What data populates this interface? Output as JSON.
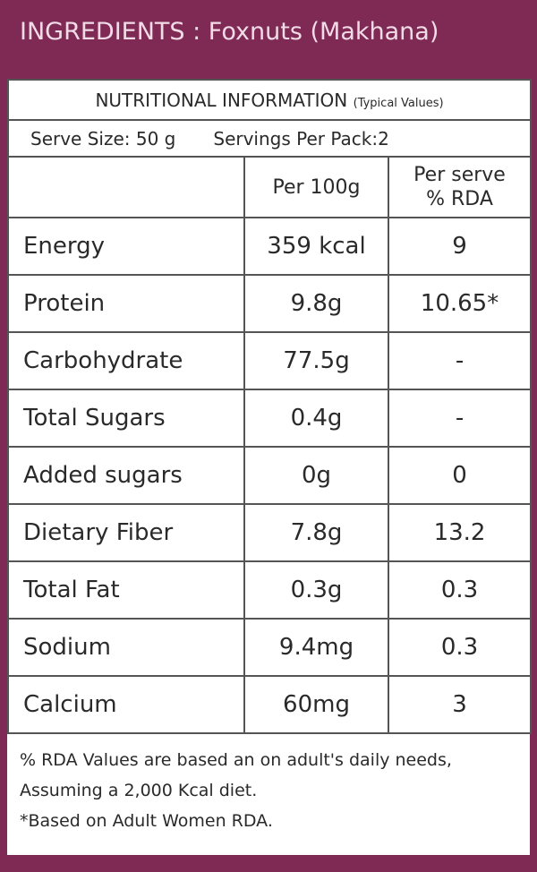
{
  "header": {
    "title": "INGREDIENTS : Foxnuts (Makhana)"
  },
  "table": {
    "title": "NUTRITIONAL INFORMATION",
    "subtitle": "(Typical Values)",
    "serve_size": "Serve Size: 50 g",
    "servings": "Servings Per Pack:2",
    "columns": [
      "Per 100g",
      "Per serve % RDA"
    ],
    "rows": [
      [
        "Energy",
        "359 kcal",
        "9"
      ],
      [
        "Protein",
        "9.8g",
        "10.65*"
      ],
      [
        "Carbohydrate",
        "77.5g",
        "-"
      ],
      [
        "Total Sugars",
        "0.4g",
        "-"
      ],
      [
        "Added sugars",
        "0g",
        "0"
      ],
      [
        "Dietary Fiber",
        "7.8g",
        "13.2"
      ],
      [
        "Total Fat",
        "0.3g",
        "0.3"
      ],
      [
        "Sodium",
        "9.4mg",
        "0.3"
      ],
      [
        "Calcium",
        "60mg",
        "3"
      ]
    ]
  },
  "footer": {
    "notes": [
      "% RDA Values are based an on adult's daily needs, Assuming a 2,000 Kcal diet.",
      "*Based on Adult Women RDA."
    ]
  }
}
